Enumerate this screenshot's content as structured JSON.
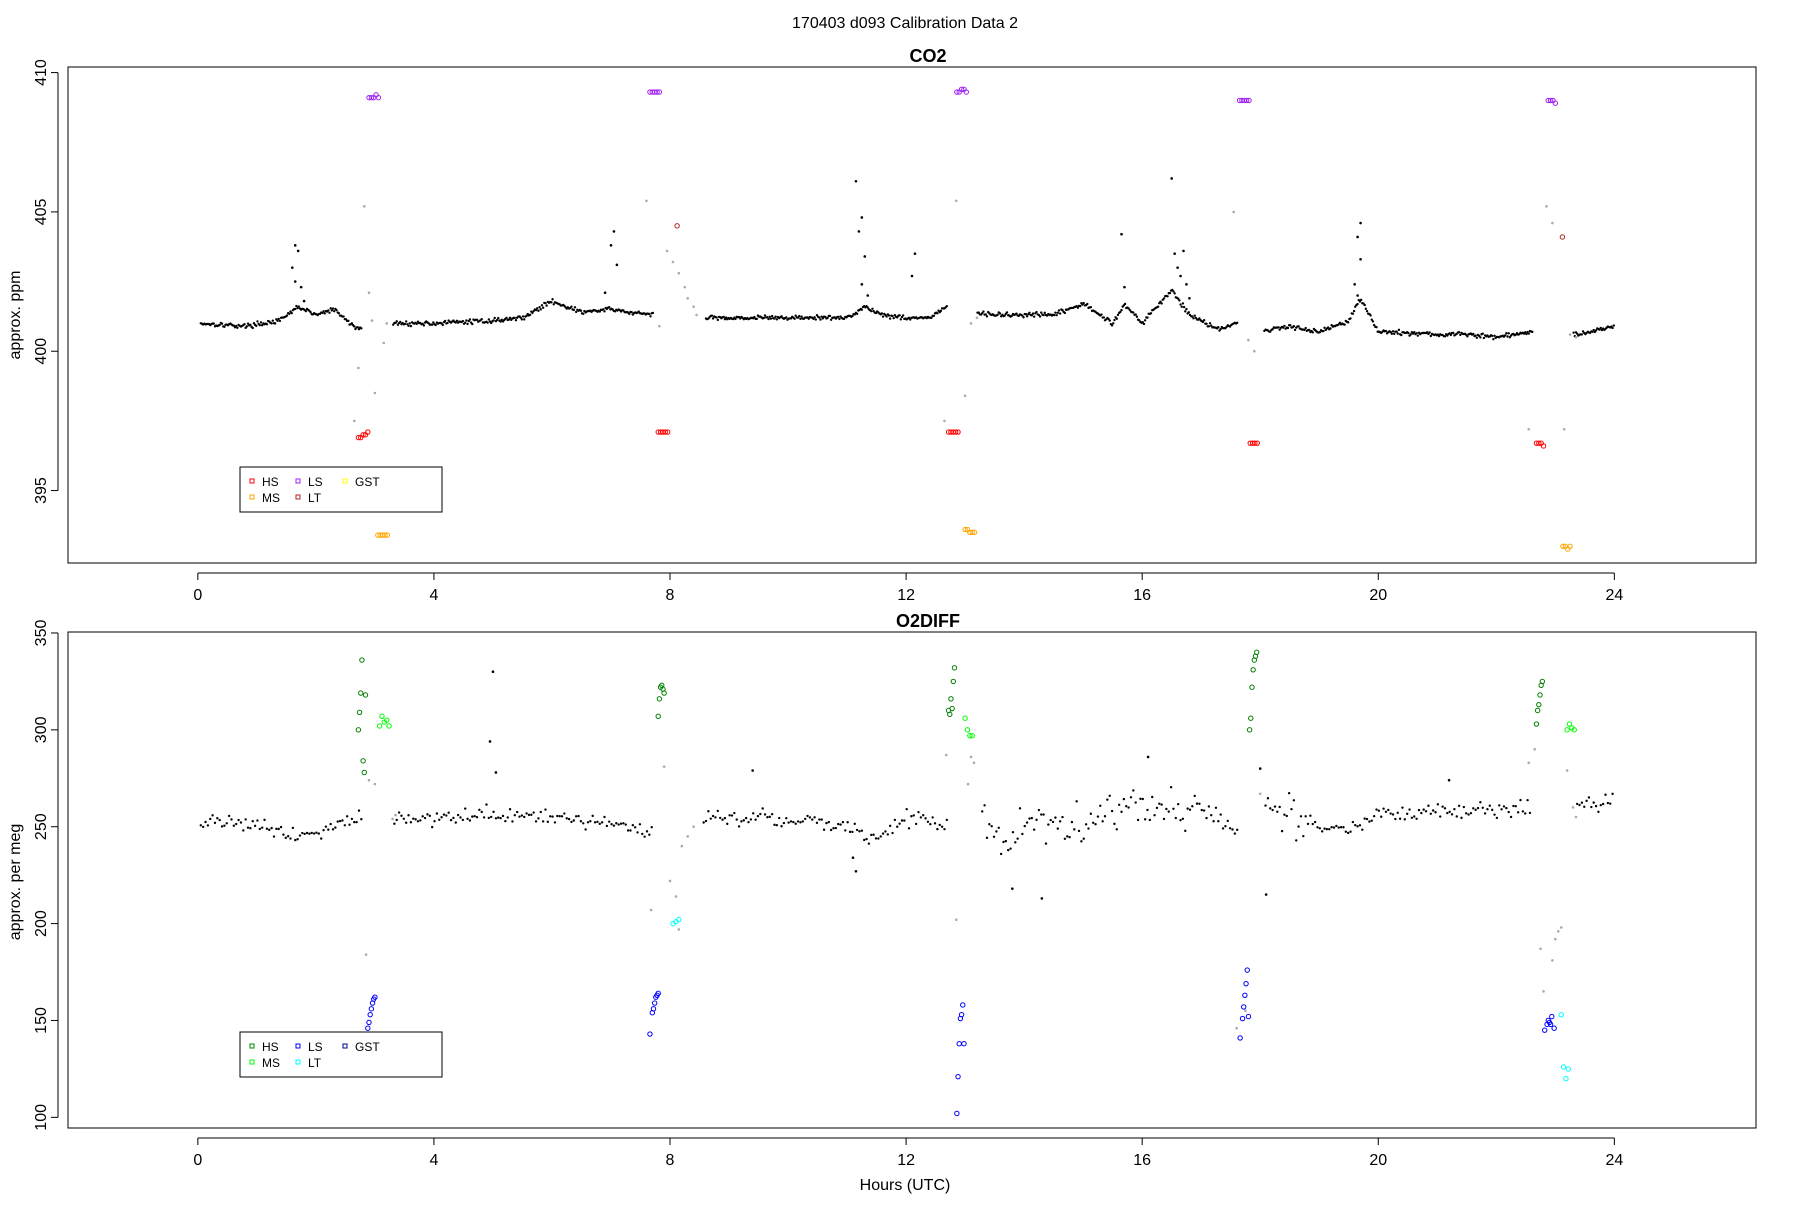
{
  "figure_title": "170403   d093   Calibration Data 2",
  "colors": {
    "ambient": "#000000",
    "transition": "#aaaaaa",
    "co2_HS": "#ff0000",
    "co2_MS": "#ffa500",
    "co2_LS": "#a020f0",
    "co2_LT": "#b22222",
    "co2_GST": "#ffff00",
    "o2_HS": "#008000",
    "o2_MS": "#00ff00",
    "o2_LS": "#0000ff",
    "o2_LT": "#00ffff",
    "o2_GST": "#00008b"
  },
  "chart_data": [
    {
      "type": "scatter",
      "title": "CO2",
      "xlabel": "",
      "ylabel": "approx. ppm",
      "xlim": [
        -2.2,
        26.4
      ],
      "ylim": [
        392.4,
        410.2
      ],
      "xticks": [
        0,
        4,
        8,
        12,
        16,
        20,
        24
      ],
      "xtick_labels": [
        "0",
        "4",
        "8",
        "12",
        "16",
        "20",
        "24"
      ],
      "yticks": [
        395,
        400,
        405,
        410
      ],
      "ytick_labels": [
        "395",
        "400",
        "405",
        "410"
      ],
      "legend": {
        "position": "bottom-left",
        "entries": [
          {
            "label": "HS",
            "color": "#ff0000"
          },
          {
            "label": "MS",
            "color": "#ffa500"
          },
          {
            "label": "LS",
            "color": "#a020f0"
          },
          {
            "label": "LT",
            "color": "#b22222"
          },
          {
            "label": "GST",
            "color": "#ffff00"
          }
        ]
      },
      "ambient_profile": {
        "knots_x": [
          0.05,
          0.8,
          1.4,
          1.7,
          2.0,
          2.3,
          2.7,
          3.3,
          4.0,
          5.0,
          5.5,
          6.0,
          6.5,
          7.0,
          7.3,
          7.7,
          8.5,
          9.5,
          10.5,
          11.0,
          11.3,
          11.6,
          12.0,
          12.4,
          12.7,
          13.1,
          13.5,
          14.5,
          15.0,
          15.5,
          15.7,
          16.0,
          16.5,
          16.8,
          17.3,
          17.6,
          18.0,
          18.5,
          19.0,
          19.5,
          19.7,
          20.0,
          21.0,
          21.5,
          22.0,
          22.6,
          23.3,
          23.6,
          24.0
        ],
        "knots_y": [
          401.0,
          400.9,
          401.1,
          401.6,
          401.3,
          401.5,
          400.8,
          401.0,
          401.0,
          401.1,
          401.2,
          401.8,
          401.4,
          401.5,
          401.4,
          401.3,
          401.2,
          401.2,
          401.2,
          401.2,
          401.6,
          401.3,
          401.2,
          401.2,
          401.6,
          401.4,
          401.3,
          401.3,
          401.7,
          401.0,
          401.7,
          401.0,
          402.2,
          401.3,
          400.8,
          401.0,
          400.7,
          400.9,
          400.7,
          401.1,
          401.9,
          400.7,
          400.6,
          400.6,
          400.5,
          400.7,
          400.6,
          400.7,
          400.9
        ],
        "noise": 0.12,
        "gaps": [
          [
            2.78,
            3.3
          ],
          [
            7.72,
            8.6
          ],
          [
            12.7,
            13.2
          ],
          [
            17.62,
            18.05
          ],
          [
            22.62,
            23.3
          ]
        ]
      },
      "ambient_spikes": [
        {
          "x": 1.6,
          "y": 403.0
        },
        {
          "x": 1.65,
          "y": 403.8
        },
        {
          "x": 1.65,
          "y": 402.5
        },
        {
          "x": 1.7,
          "y": 403.6
        },
        {
          "x": 1.75,
          "y": 402.3
        },
        {
          "x": 1.8,
          "y": 401.8
        },
        {
          "x": 7.05,
          "y": 404.3
        },
        {
          "x": 7.0,
          "y": 403.8
        },
        {
          "x": 7.1,
          "y": 403.1
        },
        {
          "x": 6.9,
          "y": 402.1
        },
        {
          "x": 11.15,
          "y": 406.1
        },
        {
          "x": 11.2,
          "y": 404.3
        },
        {
          "x": 11.25,
          "y": 404.8
        },
        {
          "x": 11.3,
          "y": 403.4
        },
        {
          "x": 11.25,
          "y": 402.4
        },
        {
          "x": 11.35,
          "y": 402.0
        },
        {
          "x": 12.15,
          "y": 403.5
        },
        {
          "x": 12.1,
          "y": 402.7
        },
        {
          "x": 15.65,
          "y": 404.2
        },
        {
          "x": 15.7,
          "y": 402.3
        },
        {
          "x": 16.5,
          "y": 406.2
        },
        {
          "x": 16.55,
          "y": 403.5
        },
        {
          "x": 16.6,
          "y": 403.0
        },
        {
          "x": 16.65,
          "y": 402.7
        },
        {
          "x": 16.7,
          "y": 403.6
        },
        {
          "x": 16.75,
          "y": 402.4
        },
        {
          "x": 16.8,
          "y": 401.9
        },
        {
          "x": 19.7,
          "y": 404.6
        },
        {
          "x": 19.65,
          "y": 404.1
        },
        {
          "x": 19.7,
          "y": 403.3
        },
        {
          "x": 19.6,
          "y": 402.4
        },
        {
          "x": 19.65,
          "y": 402.0
        }
      ],
      "transition_points": [
        {
          "x": 2.65,
          "y": 397.5
        },
        {
          "x": 2.72,
          "y": 399.4
        },
        {
          "x": 2.82,
          "y": 405.2
        },
        {
          "x": 2.9,
          "y": 402.1
        },
        {
          "x": 2.95,
          "y": 401.1
        },
        {
          "x": 3.0,
          "y": 398.5
        },
        {
          "x": 3.15,
          "y": 400.3
        },
        {
          "x": 3.2,
          "y": 401.0
        },
        {
          "x": 7.6,
          "y": 405.4
        },
        {
          "x": 7.82,
          "y": 400.9
        },
        {
          "x": 7.95,
          "y": 403.6
        },
        {
          "x": 8.05,
          "y": 403.2
        },
        {
          "x": 8.15,
          "y": 402.8
        },
        {
          "x": 8.25,
          "y": 402.3
        },
        {
          "x": 8.3,
          "y": 401.9
        },
        {
          "x": 8.4,
          "y": 401.6
        },
        {
          "x": 8.45,
          "y": 401.3
        },
        {
          "x": 12.65,
          "y": 397.5
        },
        {
          "x": 12.85,
          "y": 405.4
        },
        {
          "x": 13.0,
          "y": 398.4
        },
        {
          "x": 13.1,
          "y": 401.0
        },
        {
          "x": 13.2,
          "y": 401.2
        },
        {
          "x": 17.55,
          "y": 405.0
        },
        {
          "x": 17.8,
          "y": 400.4
        },
        {
          "x": 17.9,
          "y": 400.0
        },
        {
          "x": 22.55,
          "y": 397.2
        },
        {
          "x": 22.85,
          "y": 405.2
        },
        {
          "x": 22.95,
          "y": 404.6
        },
        {
          "x": 23.15,
          "y": 397.2
        },
        {
          "x": 23.25,
          "y": 400.6
        },
        {
          "x": 23.35,
          "y": 400.5
        }
      ],
      "series": [
        {
          "name": "HS",
          "color": "#ff0000",
          "x": [
            2.72,
            2.76,
            2.8,
            2.84,
            2.88,
            7.8,
            7.84,
            7.88,
            7.92,
            7.96,
            12.72,
            12.76,
            12.8,
            12.84,
            12.88,
            17.83,
            17.87,
            17.91,
            17.95,
            22.68,
            22.72,
            22.76,
            22.8
          ],
          "y": [
            396.9,
            396.9,
            397.0,
            397.0,
            397.1,
            397.1,
            397.1,
            397.1,
            397.1,
            397.1,
            397.1,
            397.1,
            397.1,
            397.1,
            397.1,
            396.7,
            396.7,
            396.7,
            396.7,
            396.7,
            396.7,
            396.7,
            396.6
          ]
        },
        {
          "name": "MS",
          "color": "#ffa500",
          "x": [
            3.05,
            3.09,
            3.13,
            3.17,
            3.21,
            13.0,
            13.04,
            13.08,
            13.12,
            13.16,
            23.13,
            23.17,
            23.21,
            23.25
          ],
          "y": [
            393.4,
            393.4,
            393.4,
            393.4,
            393.4,
            393.6,
            393.6,
            393.5,
            393.5,
            393.5,
            393.0,
            393.0,
            392.9,
            393.0
          ]
        },
        {
          "name": "LS",
          "color": "#a020f0",
          "x": [
            2.9,
            2.94,
            2.98,
            3.02,
            3.06,
            7.66,
            7.7,
            7.74,
            7.78,
            7.82,
            12.86,
            12.9,
            12.94,
            12.98,
            13.02,
            17.65,
            17.69,
            17.73,
            17.77,
            17.81,
            22.88,
            22.92,
            22.96,
            23.0
          ],
          "y": [
            409.1,
            409.1,
            409.1,
            409.2,
            409.1,
            409.3,
            409.3,
            409.3,
            409.3,
            409.3,
            409.3,
            409.3,
            409.4,
            409.4,
            409.3,
            409.0,
            409.0,
            409.0,
            409.0,
            409.0,
            409.0,
            409.0,
            409.0,
            408.9
          ]
        },
        {
          "name": "LT",
          "color": "#b22222",
          "x": [
            8.12,
            23.12
          ],
          "y": [
            404.5,
            404.1
          ]
        },
        {
          "name": "GST",
          "color": "#ffff00",
          "x": [],
          "y": []
        }
      ]
    },
    {
      "type": "scatter",
      "title": "O2DIFF",
      "xlabel": "Hours (UTC)",
      "ylabel": "approx. per meg",
      "xlim": [
        -2.2,
        26.4
      ],
      "ylim": [
        94.5,
        350.5
      ],
      "xticks": [
        0,
        4,
        8,
        12,
        16,
        20,
        24
      ],
      "xtick_labels": [
        "0",
        "4",
        "8",
        "12",
        "16",
        "20",
        "24"
      ],
      "yticks": [
        100,
        150,
        200,
        250,
        300,
        350
      ],
      "ytick_labels": [
        "100",
        "150",
        "200",
        "250",
        "300",
        "350"
      ],
      "legend": {
        "position": "bottom-left",
        "entries": [
          {
            "label": "HS",
            "color": "#008000"
          },
          {
            "label": "MS",
            "color": "#00ff00"
          },
          {
            "label": "LS",
            "color": "#0000ff"
          },
          {
            "label": "LT",
            "color": "#00ffff"
          },
          {
            "label": "GST",
            "color": "#00008b"
          }
        ]
      },
      "ambient_profile": {
        "knots_x": [
          0.05,
          1.0,
          1.7,
          2.3,
          2.7,
          3.3,
          5.0,
          7.0,
          7.7,
          8.5,
          10.0,
          11.0,
          11.4,
          12.0,
          12.7,
          13.2,
          13.6,
          14.0,
          15.0,
          16.0,
          17.0,
          17.6,
          18.2,
          19.0,
          19.5,
          20.0,
          22.0,
          22.6,
          23.4,
          24.0
        ],
        "knots_y": [
          253,
          252,
          245,
          250,
          255,
          254,
          256,
          252,
          248,
          255,
          254,
          250,
          243,
          255,
          250,
          262,
          240,
          252,
          252,
          262,
          258,
          250,
          260,
          250,
          248,
          256,
          259,
          260,
          262,
          263
        ],
        "noise": 6,
        "noise_wide": {
          "from": 13.2,
          "to": 18.8,
          "amount": 15
        },
        "gaps": [
          [
            2.78,
            3.3
          ],
          [
            7.72,
            8.55
          ],
          [
            12.7,
            13.25
          ],
          [
            17.62,
            18.05
          ],
          [
            22.6,
            23.35
          ]
        ]
      },
      "ambient_spikes": [
        {
          "x": 5.0,
          "y": 330
        },
        {
          "x": 4.95,
          "y": 294
        },
        {
          "x": 5.05,
          "y": 278
        },
        {
          "x": 9.4,
          "y": 279
        },
        {
          "x": 11.15,
          "y": 227
        },
        {
          "x": 11.1,
          "y": 234
        },
        {
          "x": 13.8,
          "y": 218
        },
        {
          "x": 14.3,
          "y": 213
        },
        {
          "x": 16.1,
          "y": 286
        },
        {
          "x": 18.1,
          "y": 215
        },
        {
          "x": 21.2,
          "y": 274
        },
        {
          "x": 18.0,
          "y": 280
        }
      ],
      "transition_points": [
        {
          "x": 2.85,
          "y": 184
        },
        {
          "x": 2.9,
          "y": 274
        },
        {
          "x": 3.0,
          "y": 272
        },
        {
          "x": 3.3,
          "y": 254
        },
        {
          "x": 3.35,
          "y": 256
        },
        {
          "x": 7.68,
          "y": 207
        },
        {
          "x": 7.9,
          "y": 281
        },
        {
          "x": 8.0,
          "y": 222
        },
        {
          "x": 8.1,
          "y": 214
        },
        {
          "x": 8.15,
          "y": 197
        },
        {
          "x": 8.2,
          "y": 240
        },
        {
          "x": 8.3,
          "y": 245
        },
        {
          "x": 8.4,
          "y": 250
        },
        {
          "x": 12.68,
          "y": 287
        },
        {
          "x": 12.85,
          "y": 202
        },
        {
          "x": 13.05,
          "y": 272
        },
        {
          "x": 13.1,
          "y": 286
        },
        {
          "x": 13.15,
          "y": 283
        },
        {
          "x": 17.6,
          "y": 146
        },
        {
          "x": 17.75,
          "y": 155
        },
        {
          "x": 18.0,
          "y": 267
        },
        {
          "x": 22.55,
          "y": 283
        },
        {
          "x": 22.65,
          "y": 290
        },
        {
          "x": 22.75,
          "y": 187
        },
        {
          "x": 22.8,
          "y": 165
        },
        {
          "x": 22.95,
          "y": 181
        },
        {
          "x": 23.0,
          "y": 192
        },
        {
          "x": 23.05,
          "y": 196
        },
        {
          "x": 23.1,
          "y": 198
        },
        {
          "x": 23.2,
          "y": 279
        },
        {
          "x": 23.3,
          "y": 260
        },
        {
          "x": 23.35,
          "y": 255
        }
      ],
      "series": [
        {
          "name": "HS",
          "color": "#008000",
          "x": [
            2.72,
            2.74,
            2.76,
            2.78,
            2.8,
            2.82,
            2.84,
            7.8,
            7.82,
            7.84,
            7.86,
            7.88,
            7.9,
            12.72,
            12.74,
            12.76,
            12.78,
            12.8,
            12.82,
            17.82,
            17.84,
            17.86,
            17.88,
            17.9,
            17.92,
            17.94,
            22.68,
            22.7,
            22.72,
            22.74,
            22.76,
            22.78
          ],
          "y": [
            300,
            309,
            319,
            336,
            284,
            278,
            318,
            307,
            316,
            322,
            323,
            321,
            319,
            310,
            308,
            316,
            311,
            325,
            332,
            300,
            306,
            322,
            331,
            336,
            338,
            340,
            303,
            310,
            313,
            318,
            323,
            325
          ]
        },
        {
          "name": "MS",
          "color": "#00ff00",
          "x": [
            3.08,
            3.12,
            3.16,
            3.2,
            3.24,
            13.0,
            13.04,
            13.08,
            13.12,
            23.2,
            23.24,
            23.28,
            23.32
          ],
          "y": [
            302,
            307,
            304,
            305,
            302,
            306,
            300,
            297,
            297,
            300,
            303,
            301,
            300
          ]
        },
        {
          "name": "LS",
          "color": "#0000ff",
          "x": [
            2.88,
            2.9,
            2.92,
            2.94,
            2.96,
            2.98,
            3.0,
            7.66,
            7.7,
            7.72,
            7.74,
            7.76,
            7.78,
            7.8,
            12.86,
            12.88,
            12.9,
            12.92,
            12.94,
            12.96,
            12.98,
            17.66,
            17.7,
            17.72,
            17.74,
            17.76,
            17.78,
            17.8,
            22.82,
            22.86,
            22.88,
            22.9,
            22.92,
            22.94,
            22.98
          ],
          "y": [
            146,
            149,
            153,
            156,
            159,
            161,
            162,
            143,
            154,
            156,
            159,
            162,
            163,
            164,
            102,
            121,
            138,
            151,
            153,
            158,
            138,
            141,
            151,
            157,
            163,
            169,
            176,
            152,
            145,
            148,
            150,
            149,
            148,
            152,
            146
          ]
        },
        {
          "name": "LT",
          "color": "#00ffff",
          "x": [
            8.05,
            8.1,
            8.15,
            23.1,
            23.14,
            23.18,
            23.22
          ],
          "y": [
            200,
            201,
            202,
            153,
            126,
            120,
            125
          ]
        },
        {
          "name": "GST",
          "color": "#00008b",
          "x": [],
          "y": []
        }
      ]
    }
  ]
}
